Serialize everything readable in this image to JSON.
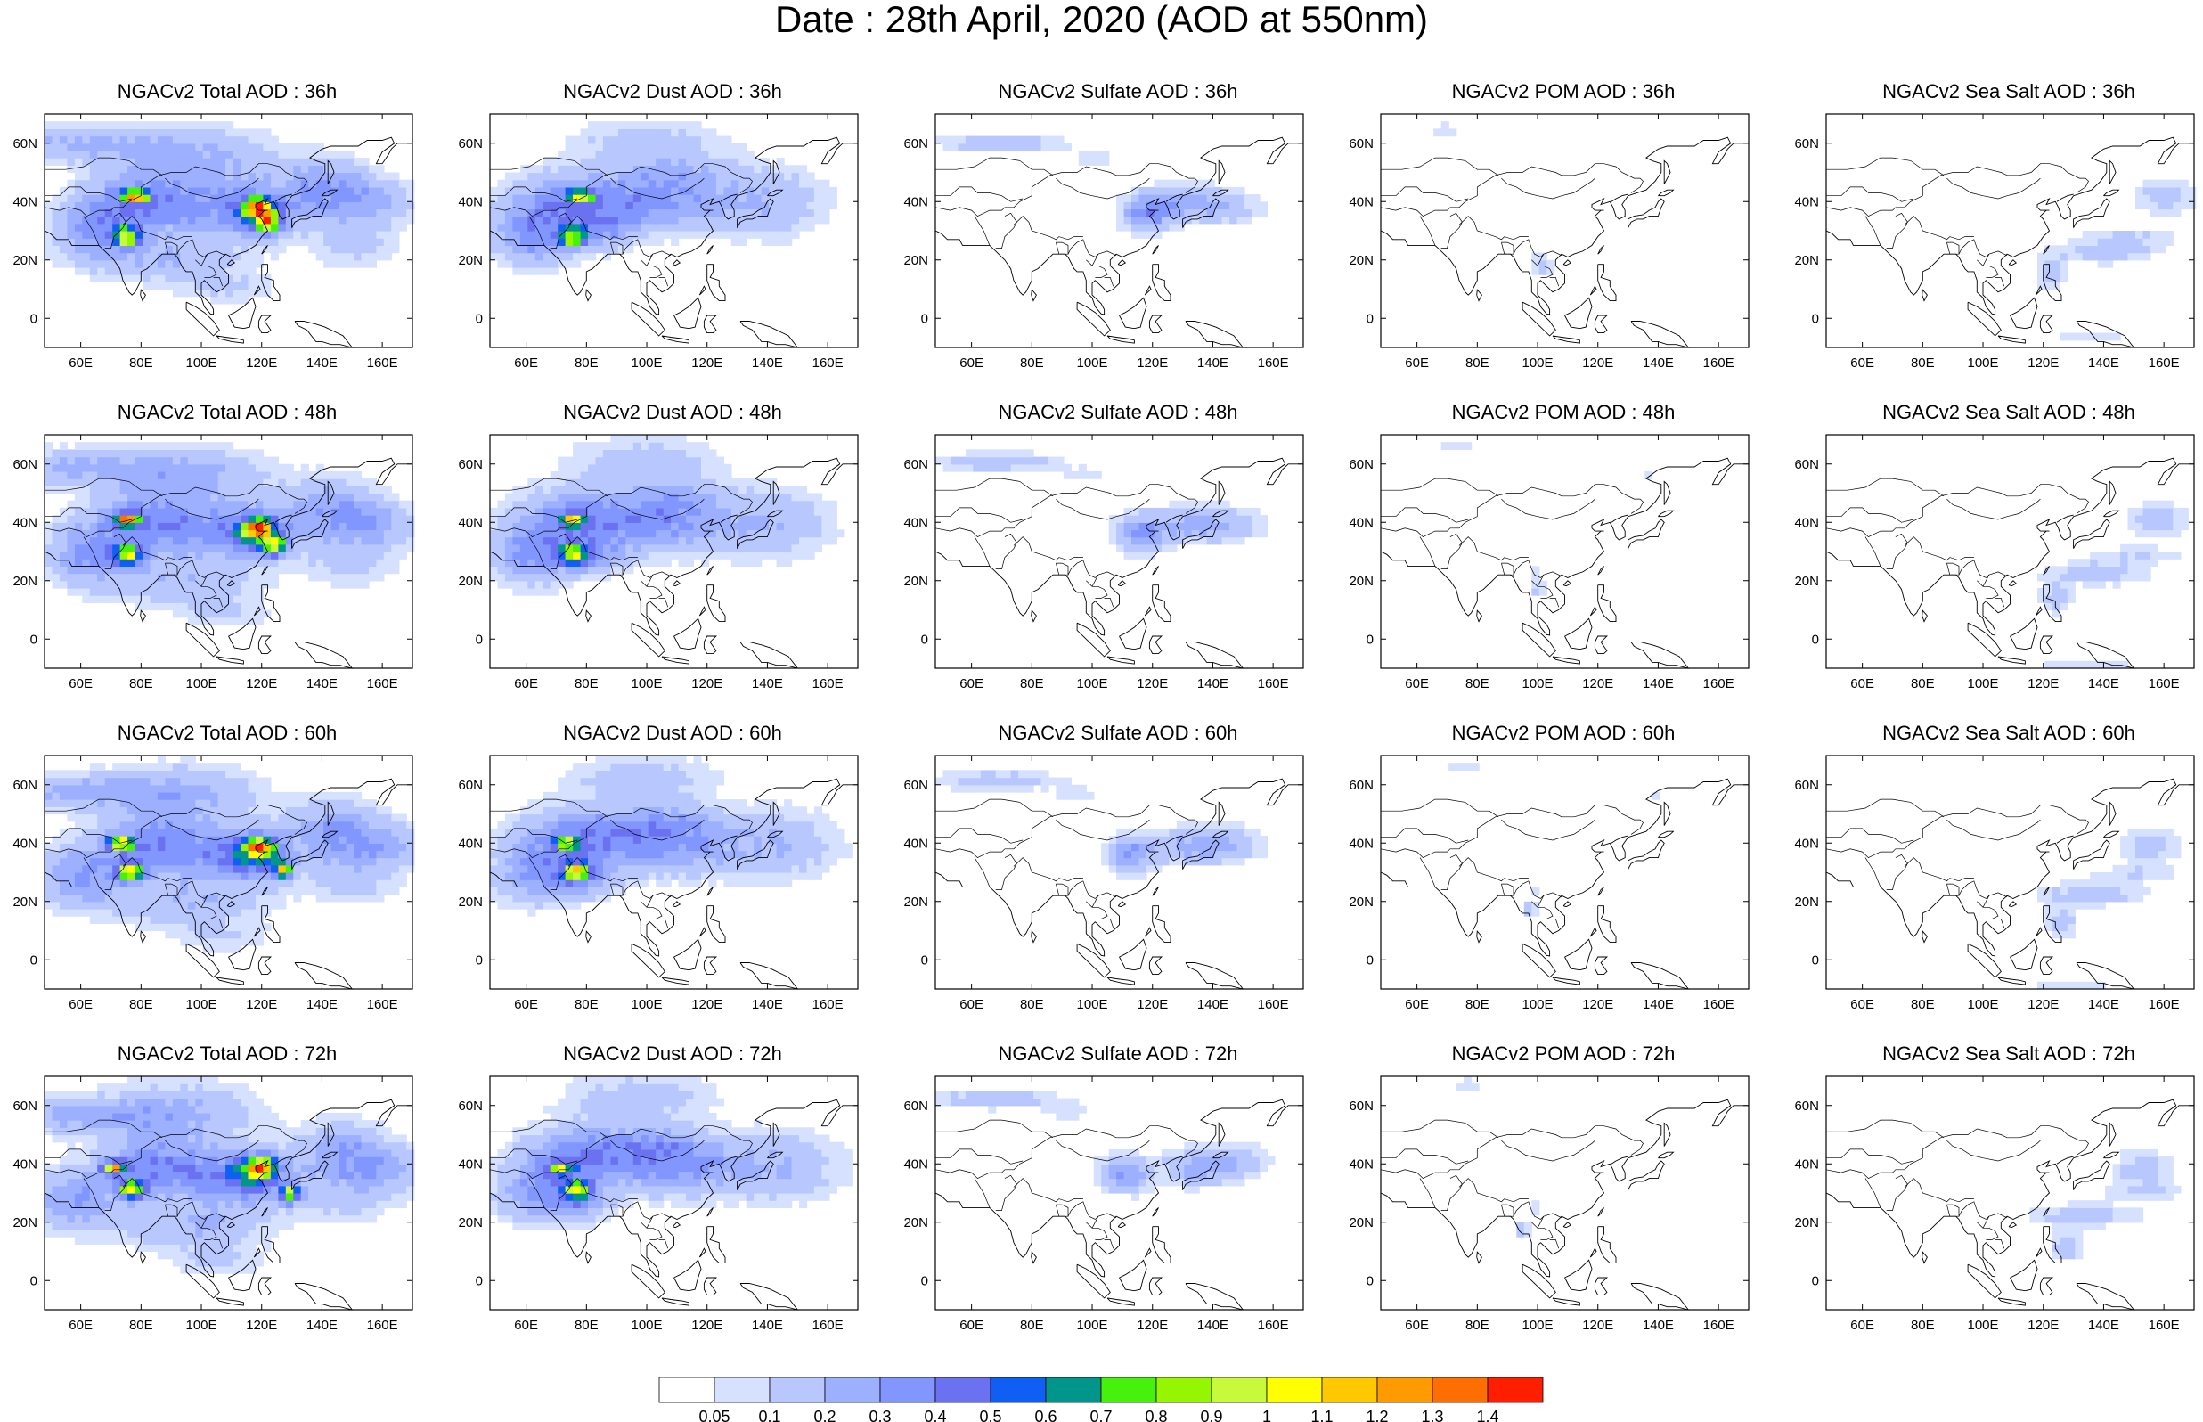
{
  "title": "Date : 28th April, 2020 (AOD at 550nm)",
  "panels": [
    {
      "title": "NGACv2 Total AOD : 36h",
      "field": "total",
      "hour": "36h"
    },
    {
      "title": "NGACv2 Dust AOD : 36h",
      "field": "dust",
      "hour": "36h"
    },
    {
      "title": "NGACv2 Sulfate AOD : 36h",
      "field": "sulfate",
      "hour": "36h"
    },
    {
      "title": "NGACv2 POM AOD : 36h",
      "field": "pom",
      "hour": "36h"
    },
    {
      "title": "NGACv2 Sea Salt AOD : 36h",
      "field": "seasalt",
      "hour": "36h"
    },
    {
      "title": "NGACv2 Total AOD : 48h",
      "field": "total",
      "hour": "48h"
    },
    {
      "title": "NGACv2 Dust AOD : 48h",
      "field": "dust",
      "hour": "48h"
    },
    {
      "title": "NGACv2 Sulfate AOD : 48h",
      "field": "sulfate",
      "hour": "48h"
    },
    {
      "title": "NGACv2 POM AOD : 48h",
      "field": "pom",
      "hour": "48h"
    },
    {
      "title": "NGACv2 Sea Salt AOD : 48h",
      "field": "seasalt",
      "hour": "48h"
    },
    {
      "title": "NGACv2 Total AOD : 60h",
      "field": "total",
      "hour": "60h"
    },
    {
      "title": "NGACv2 Dust AOD : 60h",
      "field": "dust",
      "hour": "60h"
    },
    {
      "title": "NGACv2 Sulfate AOD : 60h",
      "field": "sulfate",
      "hour": "60h"
    },
    {
      "title": "NGACv2 POM AOD : 60h",
      "field": "pom",
      "hour": "60h"
    },
    {
      "title": "NGACv2 Sea Salt AOD : 60h",
      "field": "seasalt",
      "hour": "60h"
    },
    {
      "title": "NGACv2 Total AOD : 72h",
      "field": "total",
      "hour": "72h"
    },
    {
      "title": "NGACv2 Dust AOD : 72h",
      "field": "dust",
      "hour": "72h"
    },
    {
      "title": "NGACv2 Sulfate AOD : 72h",
      "field": "sulfate",
      "hour": "72h"
    },
    {
      "title": "NGACv2 POM AOD : 72h",
      "field": "pom",
      "hour": "72h"
    },
    {
      "title": "NGACv2 Sea Salt  AOD : 72h",
      "field": "seasalt",
      "hour": "72h"
    }
  ],
  "map_extent": {
    "lon": [
      48,
      170
    ],
    "lat": [
      -10,
      70
    ]
  },
  "lon_ticks": [
    {
      "value": 60,
      "label": "60E"
    },
    {
      "value": 80,
      "label": "80E"
    },
    {
      "value": 100,
      "label": "100E"
    },
    {
      "value": 120,
      "label": "120E"
    },
    {
      "value": 140,
      "label": "140E"
    },
    {
      "value": 160,
      "label": "160E"
    }
  ],
  "lat_ticks": [
    {
      "value": 60,
      "label": "60N"
    },
    {
      "value": 40,
      "label": "40N"
    },
    {
      "value": 20,
      "label": "20N"
    },
    {
      "value": 0,
      "label": "0"
    }
  ],
  "colorbar": {
    "levels": [
      "0.05",
      "0.1",
      "0.2",
      "0.3",
      "0.4",
      "0.5",
      "0.6",
      "0.7",
      "0.8",
      "0.9",
      "1",
      "1.1",
      "1.2",
      "1.3",
      "1.4"
    ],
    "colors": [
      "#ffffff",
      "#d6e0ff",
      "#b8c8ff",
      "#9db0ff",
      "#8296ff",
      "#6a72f2",
      "#0f5ff5",
      "#00968c",
      "#46f20c",
      "#96f500",
      "#c8fa3c",
      "#ffff00",
      "#ffc800",
      "#ff9b00",
      "#ff6e00",
      "#ff1e00"
    ]
  }
}
